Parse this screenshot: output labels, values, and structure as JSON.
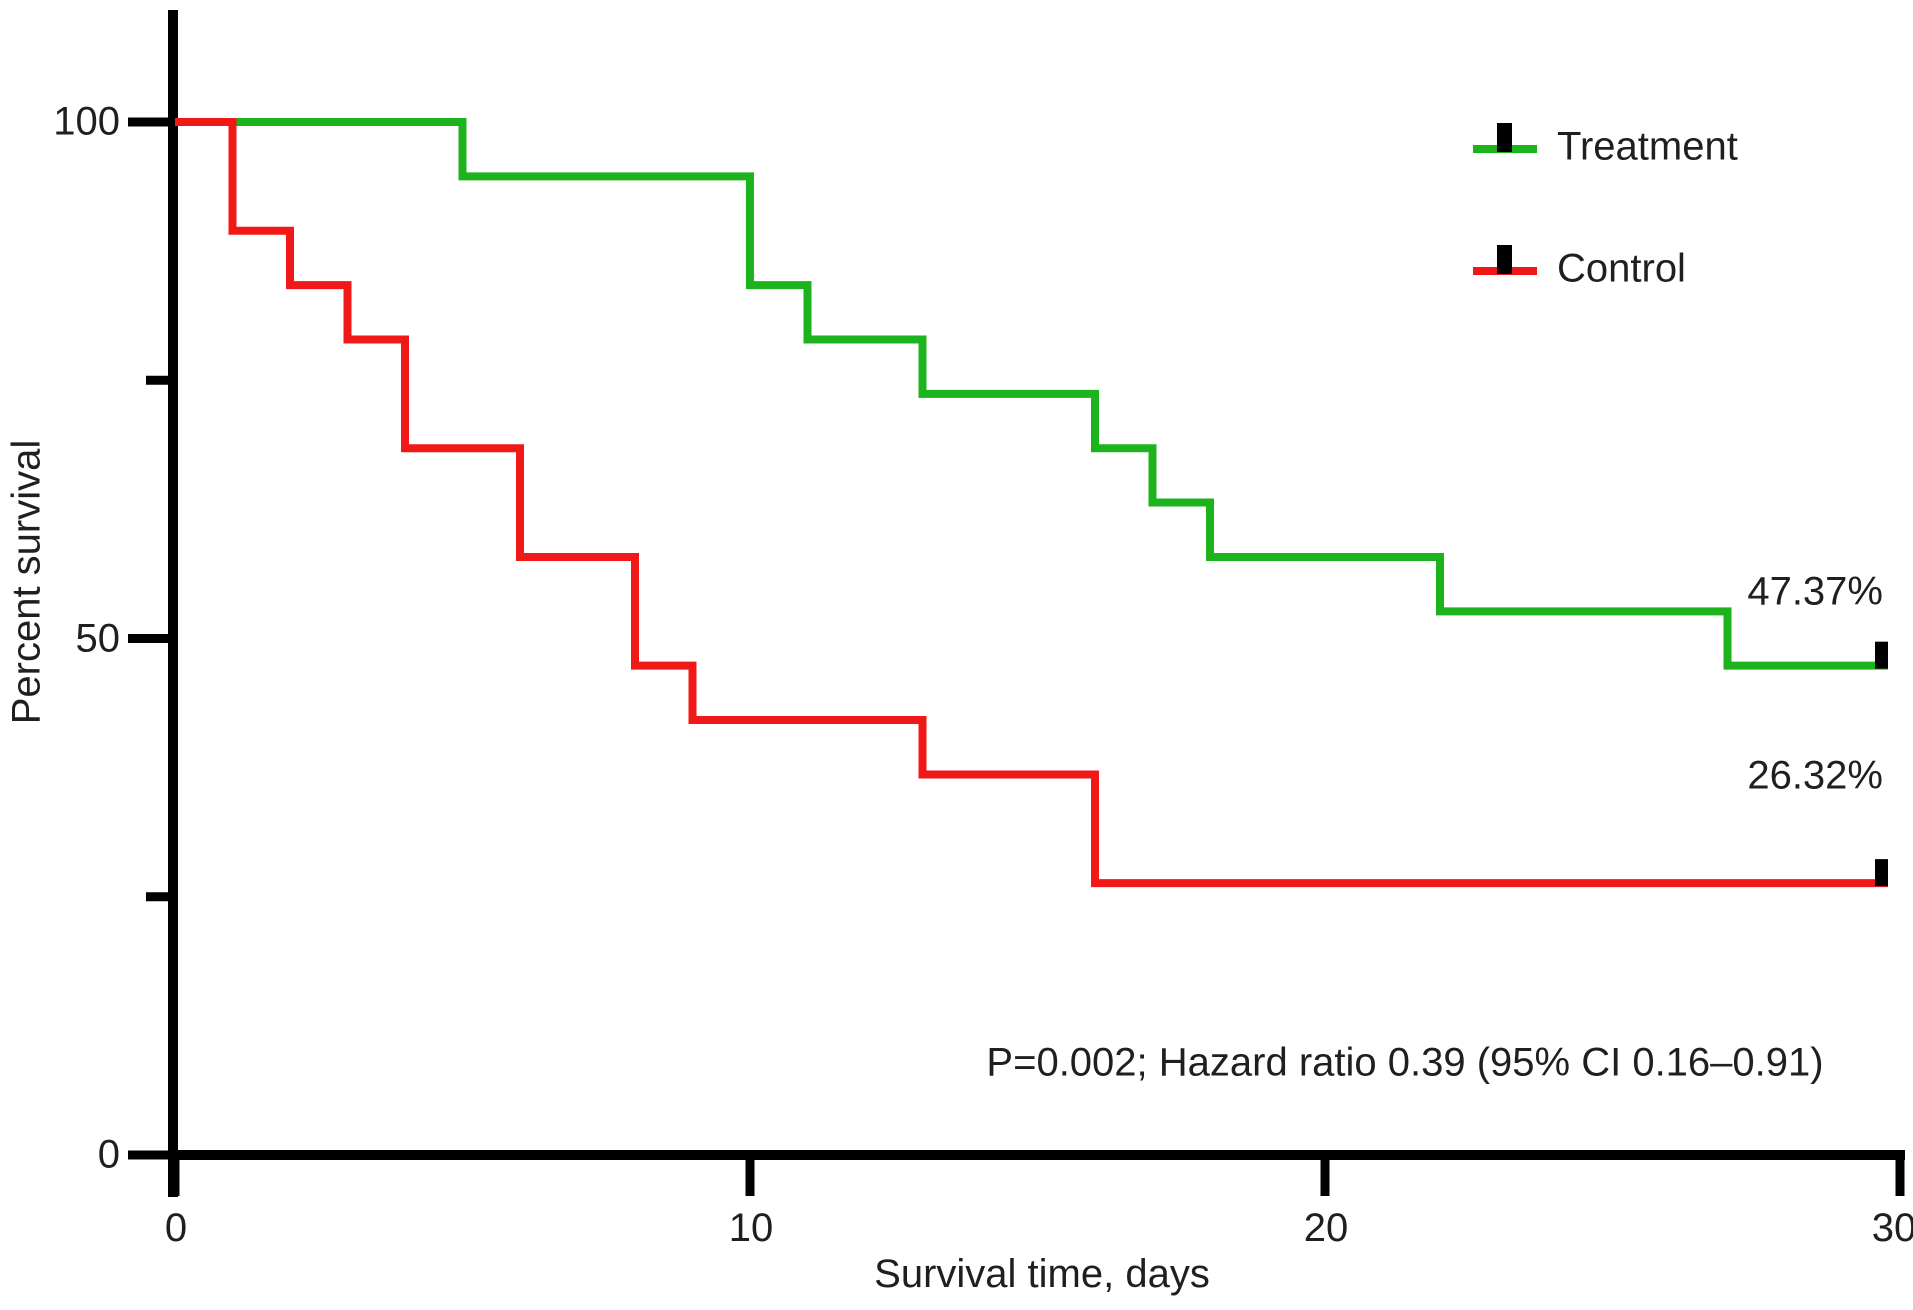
{
  "figure": {
    "background": "#ffffff",
    "axis_color": "#000000",
    "text_color": "#1f1f1f"
  },
  "axes": {
    "x": {
      "label": "Survival time, days",
      "tick_labels": [
        "0",
        "10",
        "20",
        "30"
      ],
      "tick_values": [
        0,
        10,
        20,
        30
      ]
    },
    "y": {
      "label": "Percent survival",
      "tick_labels": [
        "100",
        "50",
        "0"
      ],
      "tick_values": [
        100,
        50,
        0
      ],
      "minor_tick_values": [
        75,
        25
      ]
    }
  },
  "legend": [
    {
      "name": "Treatment",
      "color": "#1db31d"
    },
    {
      "name": "Control",
      "color": "#f11818"
    }
  ],
  "annotations": {
    "treatment_pct": "47.37%",
    "control_pct": "26.32%",
    "stats": "P=0.002; Hazard ratio 0.39 (95% CI 0.16–0.91)"
  },
  "chart_data": {
    "type": "line",
    "subtype": "kaplan-meier-step",
    "title": "",
    "xlabel": "Survival time, days",
    "ylabel": "Percent survival",
    "xlim": [
      0,
      30
    ],
    "ylim": [
      0,
      100
    ],
    "grid": false,
    "legend_position": "upper-right",
    "series": [
      {
        "name": "Treatment",
        "color": "#1db31d",
        "final_value_label": "47.37%",
        "censored_at_day": 30,
        "points": [
          [
            0,
            100
          ],
          [
            5,
            100
          ],
          [
            5,
            94.74
          ],
          [
            10,
            94.74
          ],
          [
            10,
            84.21
          ],
          [
            11,
            84.21
          ],
          [
            11,
            78.95
          ],
          [
            13,
            78.95
          ],
          [
            13,
            73.68
          ],
          [
            16,
            73.68
          ],
          [
            16,
            68.42
          ],
          [
            17,
            68.42
          ],
          [
            17,
            63.16
          ],
          [
            18,
            63.16
          ],
          [
            18,
            57.89
          ],
          [
            22,
            57.89
          ],
          [
            22,
            52.63
          ],
          [
            27,
            52.63
          ],
          [
            27,
            47.37
          ],
          [
            30,
            47.37
          ]
        ]
      },
      {
        "name": "Control",
        "color": "#f11818",
        "final_value_label": "26.32%",
        "censored_at_day": 30,
        "points": [
          [
            0,
            100
          ],
          [
            1,
            100
          ],
          [
            1,
            89.47
          ],
          [
            2,
            89.47
          ],
          [
            2,
            84.21
          ],
          [
            3,
            84.21
          ],
          [
            3,
            78.95
          ],
          [
            4,
            78.95
          ],
          [
            4,
            68.42
          ],
          [
            6,
            68.42
          ],
          [
            6,
            57.89
          ],
          [
            8,
            57.89
          ],
          [
            8,
            47.37
          ],
          [
            9,
            47.37
          ],
          [
            9,
            42.11
          ],
          [
            13,
            42.11
          ],
          [
            13,
            36.84
          ],
          [
            16,
            36.84
          ],
          [
            16,
            26.32
          ],
          [
            30,
            26.32
          ]
        ]
      }
    ],
    "stats_annotation": "P=0.002; Hazard ratio 0.39 (95% CI 0.16–0.91)"
  }
}
